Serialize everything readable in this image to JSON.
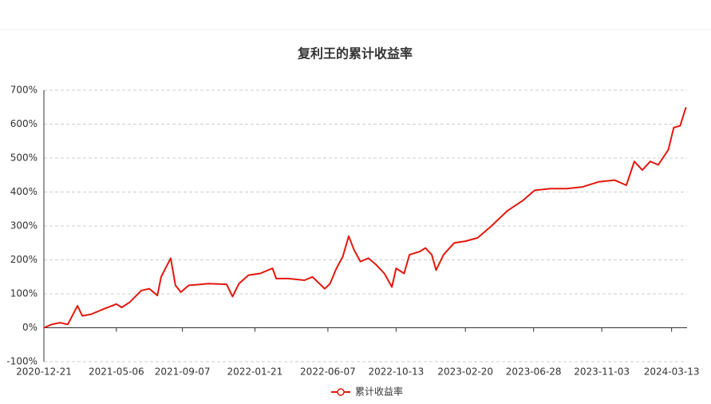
{
  "chart_data": {
    "type": "line",
    "title": "复利王的累计收益率",
    "x": [
      "2020-12-21",
      "2021-01-05",
      "2021-01-20",
      "2021-02-04",
      "2021-02-22",
      "2021-03-03",
      "2021-03-20",
      "2021-04-12",
      "2021-05-06",
      "2021-05-16",
      "2021-05-31",
      "2021-06-22",
      "2021-07-07",
      "2021-07-22",
      "2021-07-29",
      "2021-08-16",
      "2021-08-25",
      "2021-09-04",
      "2021-09-19",
      "2021-10-26",
      "2021-11-29",
      "2021-12-10",
      "2021-12-22",
      "2022-01-09",
      "2022-01-31",
      "2022-02-23",
      "2022-03-02",
      "2022-03-25",
      "2022-04-24",
      "2022-05-09",
      "2022-06-01",
      "2022-06-11",
      "2022-06-23",
      "2022-07-05",
      "2022-07-16",
      "2022-07-26",
      "2022-08-07",
      "2022-08-22",
      "2022-09-06",
      "2022-09-21",
      "2022-10-05",
      "2022-10-13",
      "2022-10-28",
      "2022-11-07",
      "2022-11-27",
      "2022-12-07",
      "2022-12-19",
      "2022-12-27",
      "2023-01-10",
      "2023-01-30",
      "2023-02-20",
      "2023-03-15",
      "2023-04-10",
      "2023-05-10",
      "2023-06-08",
      "2023-06-30",
      "2023-07-30",
      "2023-08-29",
      "2023-09-28",
      "2023-10-28",
      "2023-11-27",
      "2023-12-19",
      "2024-01-03",
      "2024-01-18",
      "2024-02-02",
      "2024-02-17",
      "2024-03-07",
      "2024-03-17",
      "2024-03-29",
      "2024-04-09"
    ],
    "series": [
      {
        "name": "累计收益率",
        "color": "#e3170d",
        "values": [
          0,
          10,
          15,
          10,
          65,
          35,
          40,
          55,
          70,
          60,
          75,
          110,
          115,
          95,
          150,
          205,
          125,
          105,
          125,
          130,
          128,
          92,
          130,
          155,
          160,
          175,
          145,
          145,
          140,
          150,
          115,
          130,
          175,
          210,
          270,
          230,
          195,
          205,
          185,
          160,
          120,
          175,
          160,
          215,
          225,
          235,
          215,
          170,
          215,
          250,
          255,
          265,
          300,
          345,
          375,
          405,
          410,
          410,
          415,
          430,
          435,
          420,
          490,
          465,
          490,
          480,
          525,
          590,
          595,
          650
        ]
      }
    ],
    "xlim": [
      "2020-12-21",
      "2024-04-11"
    ],
    "xticks": [
      "2020-12-21",
      "2021-05-06",
      "2021-09-07",
      "2022-01-21",
      "2022-06-07",
      "2022-10-13",
      "2023-02-20",
      "2023-06-28",
      "2023-11-03",
      "2024-03-13"
    ],
    "ylim": [
      -100,
      700
    ],
    "yticks": [
      {
        "value": -100,
        "label": "-100%"
      },
      {
        "value": 0,
        "label": "0%"
      },
      {
        "value": 100,
        "label": "100%"
      },
      {
        "value": 200,
        "label": "200%"
      },
      {
        "value": 300,
        "label": "300%"
      },
      {
        "value": 400,
        "label": "400%"
      },
      {
        "value": 500,
        "label": "500%"
      },
      {
        "value": 600,
        "label": "600%"
      },
      {
        "value": 700,
        "label": "700%"
      }
    ],
    "grid": true,
    "legend": "bottom"
  }
}
